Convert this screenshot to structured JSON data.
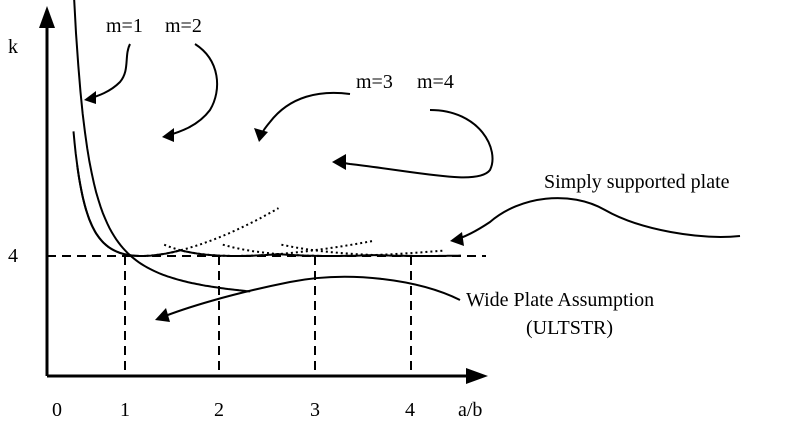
{
  "chart_data": {
    "type": "line",
    "title": "",
    "xlabel": "a/b",
    "ylabel": "k",
    "x_ticks": [
      "0",
      "1",
      "2",
      "3",
      "4"
    ],
    "y_ticks": [
      "4"
    ],
    "reference_line": {
      "y": 4,
      "style": "dashed"
    },
    "vertical_markers": [
      1,
      2,
      3,
      4
    ],
    "series": [
      {
        "name": "m=1",
        "style": "solid",
        "formula": "k = (m*b/a + a/(m*b))^2",
        "m": 1,
        "x_range": [
          0.25,
          1.0
        ]
      },
      {
        "name": "m=2",
        "style": "dotted",
        "m": 2,
        "x_range": [
          1.0,
          2.0
        ]
      },
      {
        "name": "m=3",
        "style": "dotted",
        "m": 3,
        "x_range": [
          2.0,
          3.0
        ]
      },
      {
        "name": "m=4",
        "style": "dotted",
        "m": 4,
        "x_range": [
          3.0,
          4.0
        ]
      }
    ],
    "envelope": {
      "name": "Simply supported plate",
      "style": "solid",
      "x_range": [
        0.25,
        4.4
      ]
    },
    "wide_plate_curve": {
      "name": "Wide Plate Assumption",
      "style": "solid",
      "x_range": [
        0.22,
        2.4
      ]
    }
  },
  "labels": {
    "y_axis": "k",
    "x_axis": "a/b",
    "tick_0": "0",
    "tick_1": "1",
    "tick_2": "2",
    "tick_3": "3",
    "tick_4": "4",
    "y_tick_4": "4",
    "m1": "m=1",
    "m2": "m=2",
    "m3": "m=3",
    "m4": "m=4",
    "simply_supported": "Simply supported plate",
    "wide_plate_line1": "Wide Plate Assumption",
    "wide_plate_line2": "(ULTSTR)"
  }
}
